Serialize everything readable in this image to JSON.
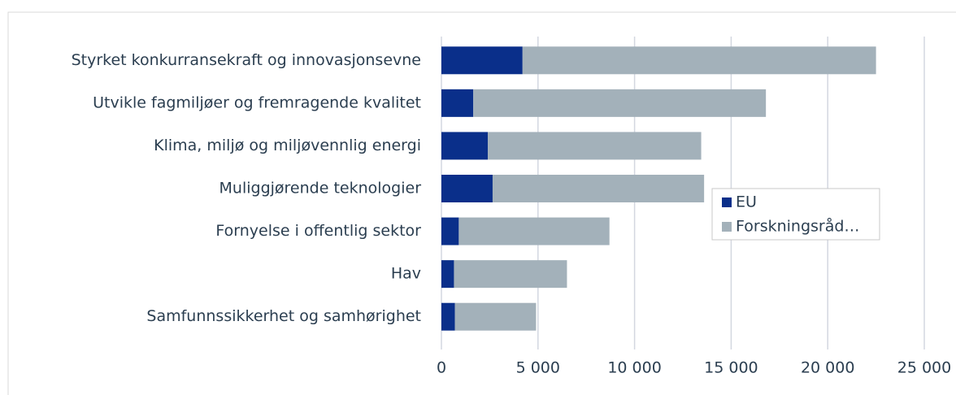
{
  "chart_data": {
    "type": "stacked_barh",
    "categories": [
      "Styrket konkurransekraft og innovasjonsevne",
      "Utvikle fagmiljøer og fremragende kvalitet",
      "Klima, miljø og miljøvennlig energi",
      "Muliggjørende teknologier",
      "Fornyelse i offentlig sektor",
      "Hav",
      "Samfunnssikkerhet og samhørighet"
    ],
    "series": [
      {
        "name": "EU",
        "color": "#0a2f8a",
        "values": [
          4200,
          1650,
          2400,
          2650,
          900,
          650,
          700
        ]
      },
      {
        "name": "Forskningsråd…",
        "color": "#a3b1ba",
        "values": [
          18300,
          15150,
          11050,
          10950,
          7800,
          5850,
          4200
        ]
      }
    ],
    "xlim": [
      0,
      25000
    ],
    "xticks": [
      0,
      {
        "value": 5000,
        "label": "5 000"
      },
      {
        "value": 10000,
        "label": "10 000"
      },
      {
        "value": 15000,
        "label": "15 000"
      },
      {
        "value": 20000,
        "label": "20 000"
      },
      {
        "value": 25000,
        "label": "25 000"
      }
    ],
    "grid": true,
    "legend": "right"
  }
}
